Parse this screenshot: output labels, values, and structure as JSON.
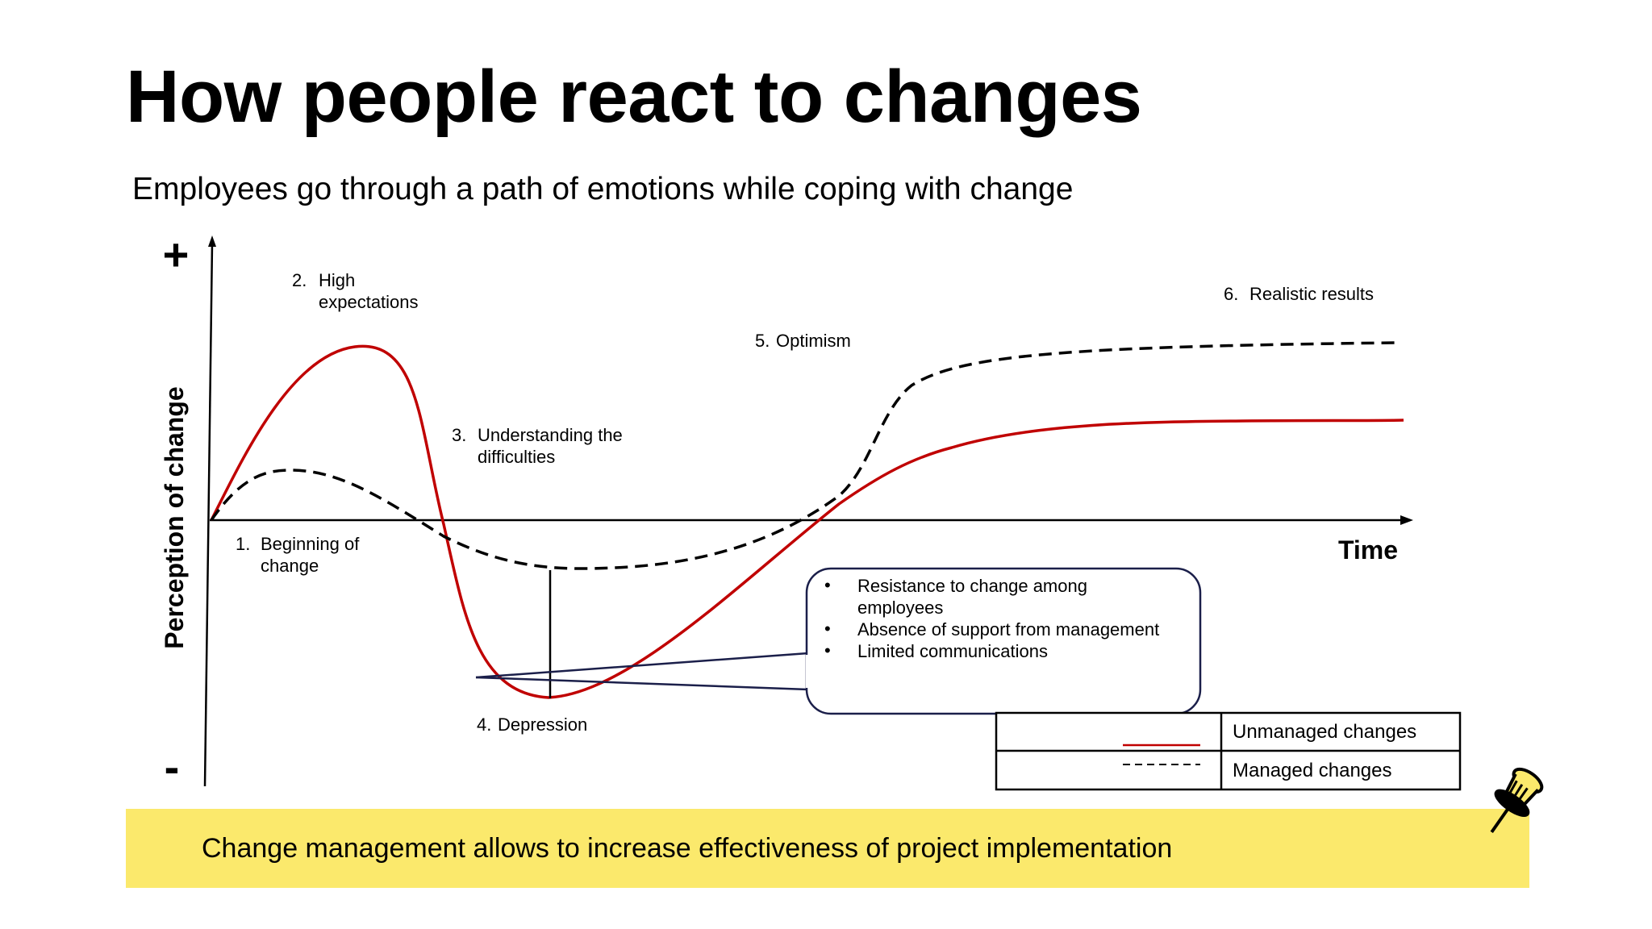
{
  "slide": {
    "title": "How people react to changes",
    "subtitle": "Employees go through a path of emotions while coping with change",
    "banner_text": "Change management allows to increase effectiveness of project implementation"
  },
  "diagram": {
    "y_axis_label": "Perception of change",
    "y_axis_plus": "+",
    "y_axis_minus": "-",
    "x_axis_label": "Time",
    "stages": [
      {
        "num": "1.",
        "lines": [
          "Beginning of",
          "change"
        ]
      },
      {
        "num": "2.",
        "lines": [
          "High",
          "expectations"
        ]
      },
      {
        "num": "3.",
        "lines": [
          "Understanding the",
          "difficulties"
        ]
      },
      {
        "num": "4.",
        "lines": [
          "Depression"
        ]
      },
      {
        "num": "5.",
        "lines": [
          "Optimism"
        ]
      },
      {
        "num": "6.",
        "lines": [
          "Realistic results"
        ]
      }
    ],
    "callout_bullets": [
      {
        "bullet": "•",
        "lines": [
          "Resistance to change among",
          "employees"
        ]
      },
      {
        "bullet": "•",
        "lines": [
          "Absence of support from management"
        ]
      },
      {
        "bullet": "•",
        "lines": [
          "Limited communications"
        ]
      }
    ],
    "legend": [
      {
        "label": "Unmanaged changes",
        "style": "solid",
        "color": "#c00000"
      },
      {
        "label": "Managed changes",
        "style": "dashed",
        "color": "#000000"
      }
    ],
    "colors": {
      "unmanaged": "#c00000",
      "managed": "#000000",
      "callout_border": "#1b1f4a",
      "banner": "#fbe96c"
    }
  },
  "icons": {
    "pushpin": "pushpin-icon"
  }
}
